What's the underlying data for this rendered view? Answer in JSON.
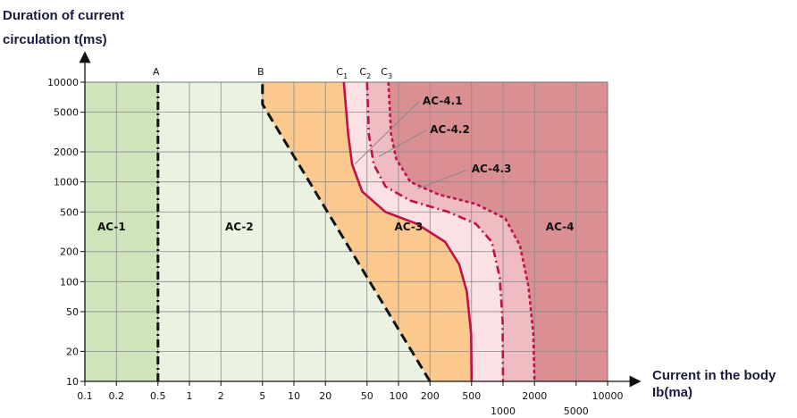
{
  "chart_data": {
    "type": "line",
    "title": "",
    "ylabel_lines": [
      "Duration of current",
      "circulation t(ms)"
    ],
    "xlabel_lines": [
      "Current in the body",
      "Ib(ma)"
    ],
    "x_scale": "log",
    "y_scale": "log",
    "xlim": [
      0.1,
      10000
    ],
    "ylim": [
      10,
      10000
    ],
    "x_ticks": [
      0.1,
      0.2,
      0.5,
      1,
      2,
      5,
      10,
      20,
      50,
      100,
      200,
      500,
      1000,
      2000,
      5000,
      10000
    ],
    "x_tick_labels": [
      "0.1",
      "0.2",
      "0.5",
      "1",
      "2",
      "5",
      "10",
      "20",
      "50",
      "100",
      "200",
      "500",
      "1000",
      "2000",
      "5000",
      "10000"
    ],
    "y_ticks": [
      10,
      20,
      50,
      100,
      200,
      500,
      1000,
      2000,
      5000,
      10000
    ],
    "y_tick_labels": [
      "10",
      "20",
      "50",
      "100",
      "200",
      "500",
      "1000",
      "2000",
      "5000",
      "10000"
    ],
    "grid": true,
    "colors": {
      "ac1": "#cfe3bd",
      "ac2": "#eaf3e2",
      "ac3": "#fbc88e",
      "ac41": "#fbe1e3",
      "ac42": "#efbcc1",
      "ac4": "#da8f93",
      "curve": "#c0124a",
      "boundary": "#111111"
    },
    "zones": [
      {
        "label": "AC-1",
        "x": 0.18,
        "y": 300
      },
      {
        "label": "AC-2",
        "x": 3.0,
        "y": 300
      },
      {
        "label": "AC-3",
        "x": 125,
        "y": 300
      },
      {
        "label": "AC-4",
        "x": 3500,
        "y": 300
      }
    ],
    "series": [
      {
        "name": "A",
        "style": "dashdot",
        "points": [
          [
            0.5,
            10
          ],
          [
            0.5,
            10000
          ]
        ]
      },
      {
        "name": "B",
        "style": "dashed",
        "points": [
          [
            200,
            10
          ],
          [
            5,
            6000
          ],
          [
            5,
            10000
          ]
        ]
      },
      {
        "name": "C1",
        "style": "solid",
        "points": [
          [
            30,
            10000
          ],
          [
            33,
            3000
          ],
          [
            36,
            1500
          ],
          [
            45,
            800
          ],
          [
            75,
            500
          ],
          [
            150,
            380
          ],
          [
            280,
            250
          ],
          [
            380,
            150
          ],
          [
            450,
            80
          ],
          [
            495,
            30
          ],
          [
            500,
            10
          ]
        ]
      },
      {
        "name": "C2",
        "style": "dashdot",
        "points": [
          [
            50,
            10000
          ],
          [
            52,
            3000
          ],
          [
            58,
            1500
          ],
          [
            75,
            900
          ],
          [
            130,
            650
          ],
          [
            300,
            500
          ],
          [
            550,
            380
          ],
          [
            780,
            250
          ],
          [
            930,
            110
          ],
          [
            990,
            40
          ],
          [
            1000,
            10
          ]
        ]
      },
      {
        "name": "C3",
        "style": "dotted",
        "points": [
          [
            80,
            10000
          ],
          [
            85,
            3000
          ],
          [
            95,
            1700
          ],
          [
            130,
            1000
          ],
          [
            240,
            750
          ],
          [
            550,
            600
          ],
          [
            1050,
            430
          ],
          [
            1450,
            230
          ],
          [
            1750,
            90
          ],
          [
            1950,
            30
          ],
          [
            2000,
            10
          ]
        ]
      }
    ],
    "line_labels": [
      {
        "text": "A",
        "x": 0.5
      },
      {
        "text": "B",
        "x": 5
      },
      {
        "text": "C",
        "sub": "1",
        "x": 30
      },
      {
        "text": "C",
        "sub": "2",
        "x": 50
      },
      {
        "text": "C",
        "sub": "3",
        "x": 80
      }
    ],
    "annotations": [
      {
        "text": "AC-4.1",
        "x": 170,
        "y": 6000,
        "target_x": 38,
        "target_y": 1500
      },
      {
        "text": "AC-4.2",
        "x": 200,
        "y": 3100,
        "target_x": 65,
        "target_y": 1800
      },
      {
        "text": "AC-4.3",
        "x": 500,
        "y": 1250,
        "target_x": 150,
        "target_y": 850
      }
    ]
  }
}
